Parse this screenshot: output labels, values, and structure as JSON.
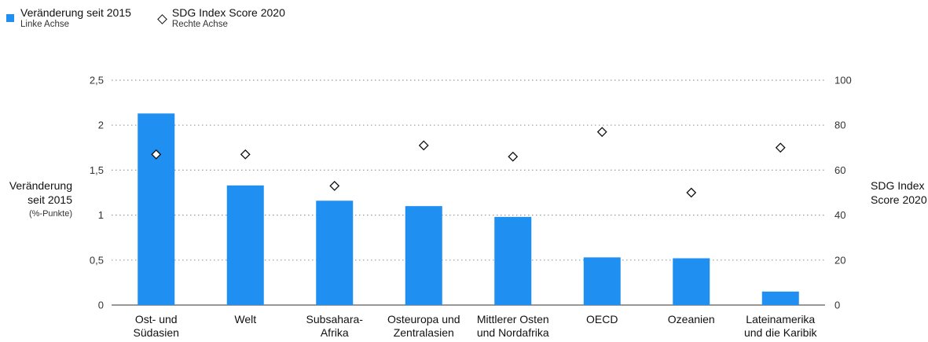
{
  "legend": {
    "bar_label": "Veränderung seit 2015",
    "bar_sub": "Linke Achse",
    "diamond_label": "SDG Index Score 2020",
    "diamond_sub": "Rechte Achse"
  },
  "axis_titles": {
    "left_line1": "Veränderung",
    "left_line2": "seit 2015",
    "left_unit": "(%-Punkte)",
    "right_line1": "SDG Index",
    "right_line2": "Score 2020"
  },
  "colors": {
    "bar": "#1f8ff2",
    "grid": "#9a9a9a",
    "text": "#222222"
  },
  "chart_data": {
    "type": "bar",
    "categories": [
      [
        "Ost- und",
        "Südasien"
      ],
      [
        "Welt"
      ],
      [
        "Subsahara-",
        "Afrika"
      ],
      [
        "Osteuropa und",
        "Zentralasien"
      ],
      [
        "Mittlerer Osten",
        "und Nordafrika"
      ],
      [
        "OECD"
      ],
      [
        "Ozeanien"
      ],
      [
        "Lateinamerika",
        "und die Karibik"
      ]
    ],
    "series": [
      {
        "name": "Veränderung seit 2015",
        "axis": "left",
        "kind": "bar",
        "values": [
          2.13,
          1.33,
          1.16,
          1.1,
          0.98,
          0.53,
          0.52,
          0.15
        ]
      },
      {
        "name": "SDG Index Score 2020",
        "axis": "right",
        "kind": "marker",
        "values": [
          67,
          67,
          53,
          71,
          66,
          77,
          50,
          70
        ]
      }
    ],
    "left_axis": {
      "min": 0,
      "max": 2.5,
      "ticks": [
        "0",
        "0,5",
        "1",
        "1,5",
        "2",
        "2,5"
      ]
    },
    "right_axis": {
      "min": 0,
      "max": 100,
      "ticks": [
        "0",
        "20",
        "40",
        "60",
        "80",
        "100"
      ]
    },
    "grid": true,
    "legend_position": "top-left"
  }
}
